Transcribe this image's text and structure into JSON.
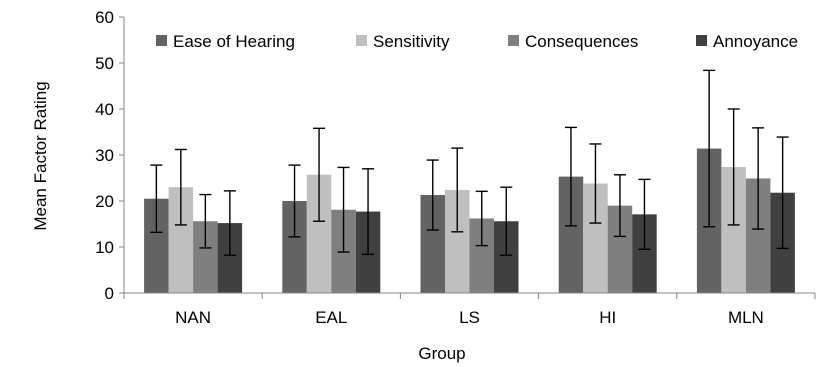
{
  "chart_data": {
    "type": "bar",
    "title": "",
    "xlabel": "Group",
    "ylabel": "Mean Factor Rating",
    "ylim": [
      0,
      60
    ],
    "yticks": [
      0,
      10,
      20,
      30,
      40,
      50,
      60
    ],
    "grid": false,
    "legend_position": "top",
    "categories": [
      "NAN",
      "EAL",
      "LS",
      "HI",
      "MLN"
    ],
    "series": [
      {
        "name": "Ease of Hearing",
        "color": "#636363",
        "values": [
          20.5,
          20.0,
          21.3,
          25.3,
          31.4
        ],
        "errors": [
          7.3,
          7.8,
          7.6,
          10.7,
          17.0
        ]
      },
      {
        "name": "Sensitivity",
        "color": "#bfbfbf",
        "values": [
          23.0,
          25.7,
          22.4,
          23.8,
          27.4
        ],
        "errors": [
          8.2,
          10.1,
          9.1,
          8.6,
          12.6
        ]
      },
      {
        "name": "Consequences",
        "color": "#7f7f7f",
        "values": [
          15.6,
          18.1,
          16.2,
          19.0,
          24.9
        ],
        "errors": [
          5.8,
          9.2,
          5.9,
          6.7,
          11.0
        ]
      },
      {
        "name": "Annoyance",
        "color": "#404040",
        "values": [
          15.2,
          17.7,
          15.6,
          17.1,
          21.8
        ],
        "errors": [
          7.0,
          9.3,
          7.4,
          7.6,
          12.1
        ]
      }
    ]
  }
}
